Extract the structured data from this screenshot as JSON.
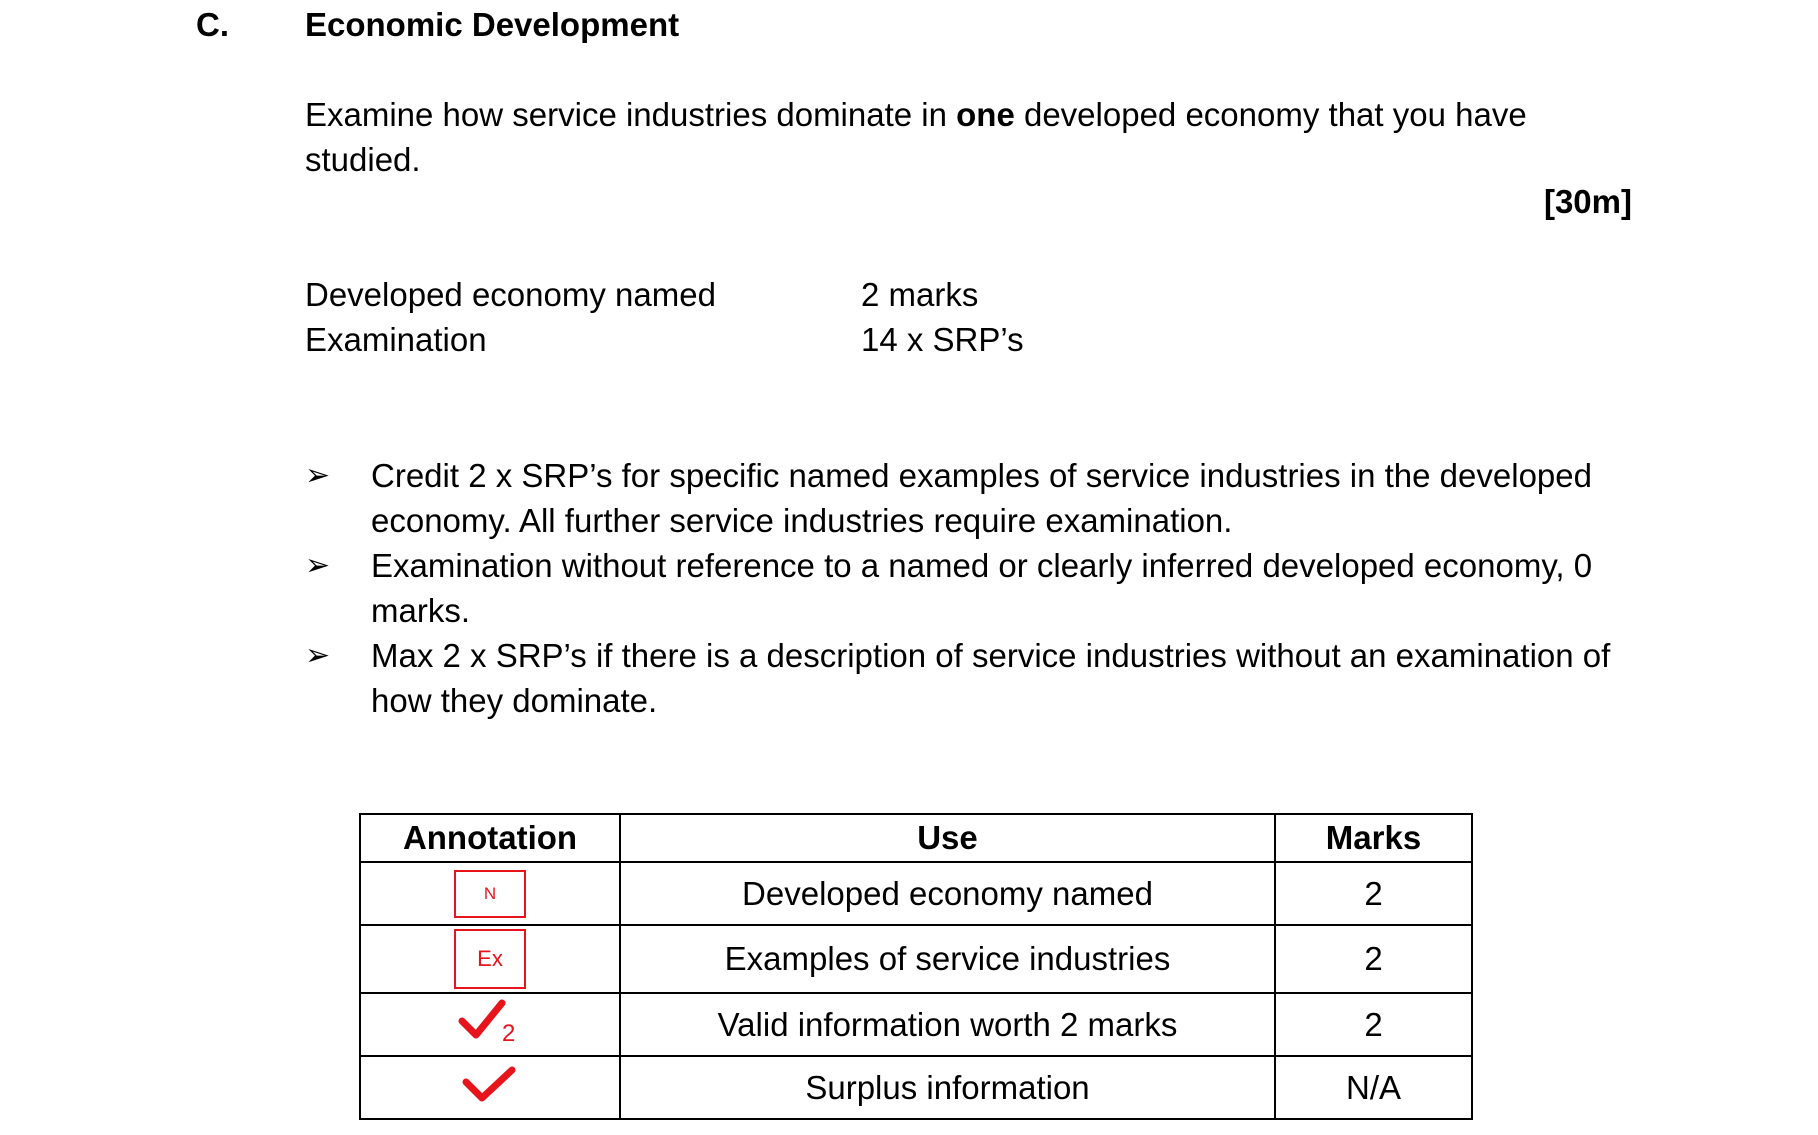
{
  "section": {
    "letter": "C.",
    "title": "Economic Development"
  },
  "question": {
    "text_before": "Examine how service industries dominate in ",
    "bold_word": "one",
    "text_after": " developed economy that you have studied.",
    "total_marks": "[30m]"
  },
  "breakdown": [
    {
      "label": "Developed economy named",
      "value": "2 marks"
    },
    {
      "label": "Examination",
      "value": "14 x SRP’s"
    }
  ],
  "bullets": [
    "Credit 2 x SRP’s for specific named examples of service industries in the developed economy. All further service industries require examination.",
    "Examination without reference to a named or clearly inferred developed economy, 0 marks.",
    "Max 2 x SRP’s if there is a description of service industries without an examination of how they dominate."
  ],
  "bullet_symbol": "➢",
  "table": {
    "headers": [
      "Annotation",
      "Use",
      "Marks"
    ],
    "rows": [
      {
        "annotation_text": "N",
        "annotation_icon": "n-box-icon",
        "use": "Developed economy named",
        "marks": "2"
      },
      {
        "annotation_text": "Ex",
        "annotation_icon": "ex-box-icon",
        "use": "Examples of service industries",
        "marks": "2"
      },
      {
        "annotation_text": "2",
        "annotation_icon": "tick-2-icon",
        "use": "Valid information worth 2 marks",
        "marks": "2"
      },
      {
        "annotation_text": "",
        "annotation_icon": "tick-icon",
        "use": "Surplus information",
        "marks": "N/A"
      }
    ]
  },
  "colors": {
    "annotation_red": "#e8141b",
    "text": "#000000"
  }
}
